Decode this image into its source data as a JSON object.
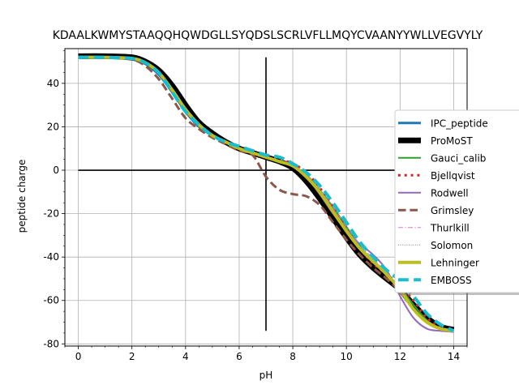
{
  "chart_data": {
    "type": "line",
    "title": "KDAALKWMYSTAAQQHQWDGLLSYQDSLSCRLVFLLMQYCVAANYYWLLVEGVYLY",
    "xlabel": "pH",
    "ylabel": "peptide charge",
    "xlim": [
      -0.5,
      14.5
    ],
    "ylim": [
      -81,
      56
    ],
    "xticks": [
      0,
      2,
      4,
      6,
      8,
      10,
      12,
      14
    ],
    "yticks": [
      -80,
      -60,
      -40,
      -20,
      0,
      20,
      40
    ],
    "grid": true,
    "legend_position": "right",
    "reference_lines": [
      {
        "orientation": "horizontal",
        "y": 0,
        "x_range": [
          0,
          14
        ]
      },
      {
        "orientation": "vertical",
        "x": 7,
        "y_range": [
          -74,
          52
        ]
      }
    ],
    "x": [
      0,
      1,
      2,
      2.5,
      3,
      3.5,
      4,
      4.5,
      5,
      5.5,
      6,
      6.5,
      7,
      7.5,
      8,
      8.5,
      9,
      9.5,
      10,
      10.5,
      11,
      11.5,
      12,
      12.5,
      13,
      13.5,
      14
    ],
    "series": [
      {
        "name": "IPC_peptide",
        "color": "#1f77b4",
        "style": "solid",
        "width": 3,
        "values": [
          52,
          52,
          51,
          49,
          44,
          36,
          27,
          20,
          16,
          13,
          10,
          8,
          6,
          4,
          2,
          -3,
          -10,
          -18,
          -27,
          -36,
          -43,
          -49,
          -56,
          -64,
          -70,
          -73,
          -74
        ]
      },
      {
        "name": "ProMoST",
        "color": "#000000",
        "style": "solid",
        "width": 7,
        "values": [
          52.5,
          52.5,
          52,
          50,
          46,
          39,
          30,
          22,
          17,
          13,
          10,
          8,
          6,
          4,
          1,
          -5,
          -13,
          -22,
          -31,
          -39,
          -45,
          -50,
          -55,
          -62,
          -68,
          -72,
          -73.5
        ]
      },
      {
        "name": "Gauci_calib",
        "color": "#2ca02c",
        "style": "solid",
        "width": 2,
        "values": [
          52,
          52,
          51.5,
          49.5,
          45,
          37,
          28,
          21,
          16,
          13,
          10,
          8,
          6,
          4,
          2,
          -2,
          -9,
          -17,
          -26,
          -35,
          -42,
          -48,
          -54,
          -62,
          -69,
          -73,
          -74
        ]
      },
      {
        "name": "Bjellqvist",
        "color": "#d62728",
        "style": "dotted",
        "width": 3,
        "values": [
          52,
          52,
          51.5,
          49.5,
          45,
          37,
          28,
          21,
          16,
          13,
          10,
          8,
          6,
          5,
          3,
          -1,
          -8,
          -17,
          -27,
          -36,
          -43,
          -48,
          -53,
          -60,
          -68,
          -72.5,
          -74
        ]
      },
      {
        "name": "Rodwell",
        "color": "#9467bd",
        "style": "solid",
        "width": 2,
        "values": [
          52,
          52,
          51.5,
          49.5,
          45,
          37,
          28,
          21,
          16,
          13,
          10,
          8,
          6,
          4,
          2,
          -3,
          -11,
          -20,
          -28,
          -34,
          -39,
          -46,
          -58,
          -68,
          -73,
          -74,
          -74.5
        ]
      },
      {
        "name": "Grimsley",
        "color": "#8c564b",
        "style": "dashed",
        "width": 3,
        "values": [
          52,
          52,
          51,
          48,
          42,
          33,
          24,
          19,
          15,
          12,
          9,
          7,
          -3,
          -9,
          -11,
          -12,
          -16,
          -24,
          -32,
          -39,
          -45,
          -50,
          -56,
          -64,
          -70,
          -73,
          -74
        ]
      },
      {
        "name": "Thurlkill",
        "color": "#e377c2",
        "style": "dashdot",
        "width": 1,
        "values": [
          52,
          52,
          51.5,
          49.5,
          45,
          37,
          28,
          21,
          16,
          13,
          10,
          8,
          6,
          4,
          2,
          -2,
          -9,
          -17,
          -26,
          -34,
          -41,
          -47,
          -55,
          -64,
          -70,
          -73,
          -74
        ]
      },
      {
        "name": "Solomon",
        "color": "#7f7f7f",
        "style": "dotted",
        "width": 1,
        "values": [
          52,
          52,
          51.5,
          49.5,
          45,
          37,
          28,
          21,
          16,
          13,
          10,
          8,
          6,
          4,
          2,
          -3,
          -10,
          -19,
          -28,
          -36,
          -42,
          -48,
          -55,
          -64,
          -70,
          -73,
          -74
        ]
      },
      {
        "name": "Lehninger",
        "color": "#bcbd22",
        "style": "solid",
        "width": 4,
        "values": [
          52,
          52,
          51.5,
          49.5,
          45,
          37,
          28,
          21,
          16,
          13,
          10,
          8,
          6,
          4,
          2,
          -3,
          -10,
          -19,
          -28,
          -36,
          -42,
          -48,
          -55,
          -64,
          -70,
          -73,
          -74
        ]
      },
      {
        "name": "EMBOSS",
        "color": "#17becf",
        "style": "dashed",
        "width": 4,
        "values": [
          52,
          52,
          51.5,
          49.5,
          45,
          36,
          27,
          21,
          16,
          13,
          11,
          9,
          7,
          6,
          3,
          -1,
          -7,
          -15,
          -24,
          -33,
          -40,
          -46,
          -51,
          -58,
          -66,
          -71,
          -74
        ]
      }
    ]
  }
}
